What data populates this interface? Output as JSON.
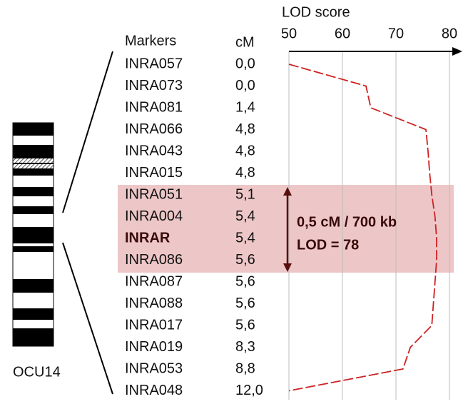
{
  "chart_data": {
    "type": "line",
    "x_label": "LOD score",
    "marker_header": "Markers",
    "cm_header": "cM",
    "chromosome_label": "OCU14",
    "categories": [
      "INRA057",
      "INRA073",
      "INRA081",
      "INRA066",
      "INRA043",
      "INRA015",
      "INRA051",
      "INRA004",
      "INRAR",
      "INRA086",
      "INRA087",
      "INRA088",
      "INRA017",
      "INRA019",
      "INRA053",
      "INRA048"
    ],
    "cm": [
      "0,0",
      "0,0",
      "1,4",
      "4,8",
      "4,8",
      "4,8",
      "5,1",
      "5,4",
      "5,4",
      "5,6",
      "5,6",
      "5,6",
      "5,6",
      "8,3",
      "8,8",
      "12,0"
    ],
    "series": [
      {
        "name": "LOD",
        "color": "#cc2222",
        "values": [
          50,
          64.4,
          65.3,
          75.6,
          76,
          76.3,
          76.7,
          77.3,
          77.6,
          77.6,
          77.3,
          77,
          76.7,
          72.7,
          71.3,
          50
        ]
      }
    ],
    "xlim": [
      50,
      80
    ],
    "xticks": [
      50,
      60,
      70,
      80
    ],
    "grid": true,
    "annotations": [
      "0,5 cM / 700 kb",
      "LOD = 78"
    ]
  }
}
